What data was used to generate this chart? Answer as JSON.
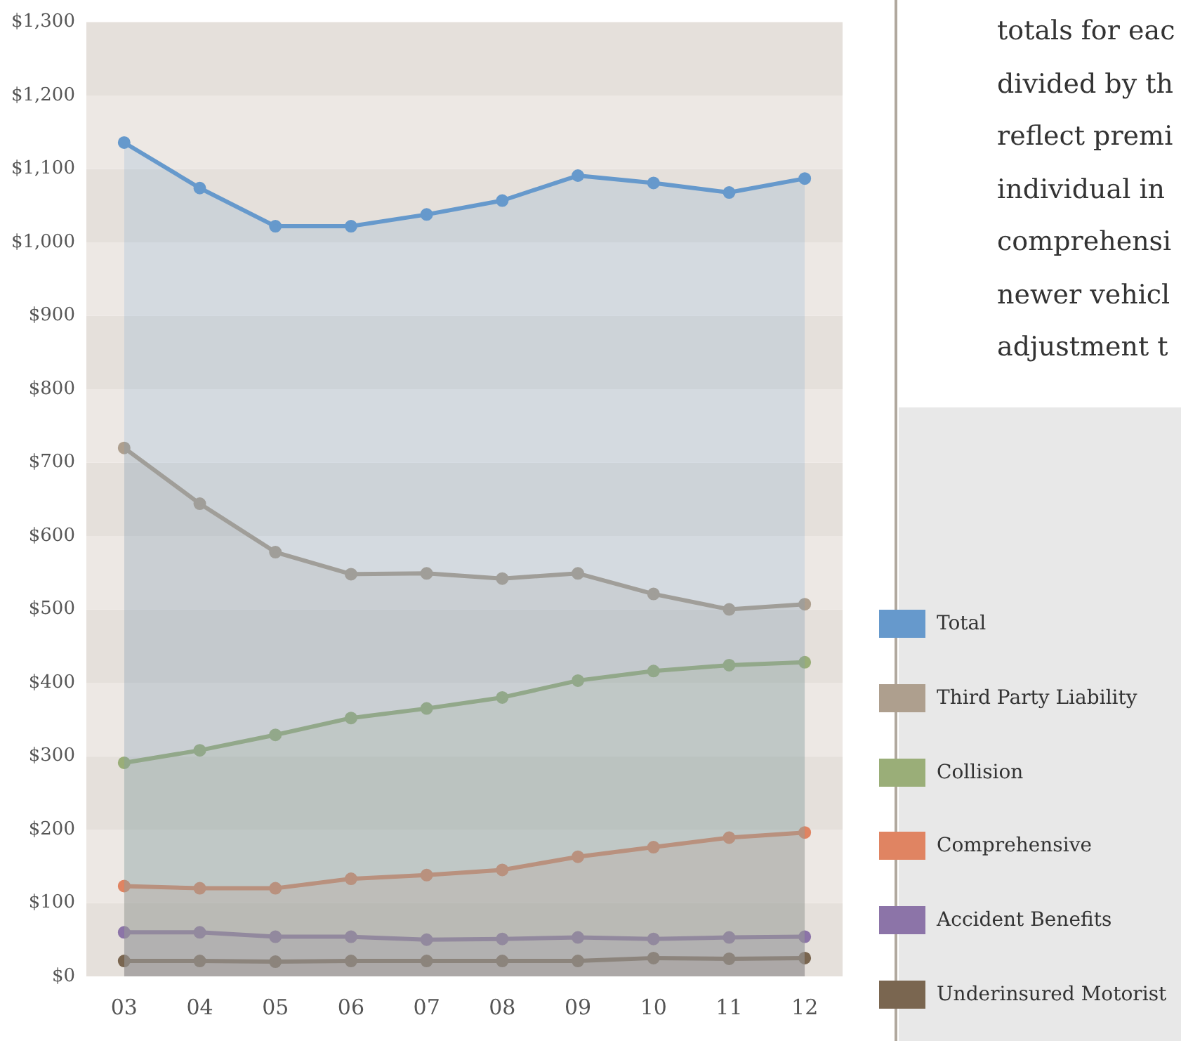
{
  "chart_data": {
    "type": "area",
    "categories": [
      "03",
      "04",
      "05",
      "06",
      "07",
      "08",
      "09",
      "10",
      "11",
      "12"
    ],
    "series": [
      {
        "name": "Total",
        "color": "#6699cc",
        "values": [
          1136,
          1074,
          1022,
          1022,
          1038,
          1057,
          1091,
          1081,
          1068,
          1087
        ]
      },
      {
        "name": "Third Party Liability",
        "color": "#ae9f8e",
        "values": [
          720,
          644,
          578,
          548,
          549,
          542,
          549,
          521,
          500,
          507
        ]
      },
      {
        "name": "Collision",
        "color": "#9aae78",
        "values": [
          291,
          308,
          329,
          352,
          365,
          380,
          403,
          416,
          424,
          428
        ]
      },
      {
        "name": "Comprehensive",
        "color": "#e08462",
        "values": [
          123,
          120,
          120,
          133,
          138,
          145,
          163,
          176,
          189,
          196
        ]
      },
      {
        "name": "Accident Benefits",
        "color": "#8c74a8",
        "values": [
          60,
          60,
          54,
          54,
          50,
          51,
          53,
          51,
          53,
          54
        ]
      },
      {
        "name": "Underinsured Motorist",
        "color": "#7a6650",
        "values": [
          21,
          21,
          20,
          21,
          21,
          21,
          21,
          25,
          24,
          25
        ]
      }
    ],
    "ylim": [
      0,
      1300
    ],
    "yticks": [
      {
        "value": 0,
        "label": "$0"
      },
      {
        "value": 100,
        "label": "$100"
      },
      {
        "value": 200,
        "label": "$200"
      },
      {
        "value": 300,
        "label": "$300"
      },
      {
        "value": 400,
        "label": "$400"
      },
      {
        "value": 500,
        "label": "$500"
      },
      {
        "value": 600,
        "label": "$600"
      },
      {
        "value": 700,
        "label": "$700"
      },
      {
        "value": 800,
        "label": "$800"
      },
      {
        "value": 900,
        "label": "$900"
      },
      {
        "value": 1000,
        "label": "$1,000"
      },
      {
        "value": 1100,
        "label": "$1,100"
      },
      {
        "value": 1200,
        "label": "$1,200"
      },
      {
        "value": 1300,
        "label": "$1,300"
      }
    ],
    "legend": "right",
    "marker": "circle",
    "line_style": "solid",
    "annotations": [
      "totals for eac",
      "divided by th",
      "reflect premi",
      "individual in",
      "comprehensi",
      "newer vehicl",
      "adjustment t"
    ]
  }
}
